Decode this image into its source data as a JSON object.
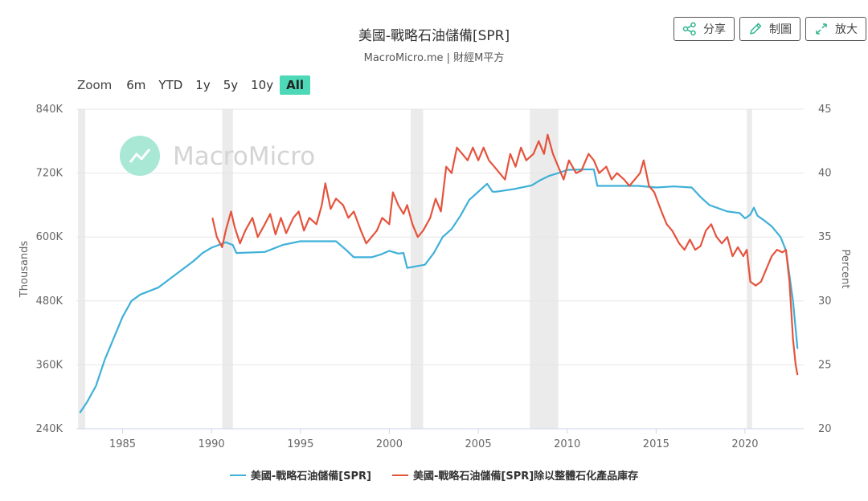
{
  "title": "美國-戰略石油儲備[SPR]",
  "subtitle": "MacroMicro.me | 財經M平方",
  "watermark": "MacroMicro",
  "toolbar": {
    "share": "分享",
    "draw": "制圖",
    "enlarge": "放大"
  },
  "zoom": {
    "label": "Zoom",
    "options": [
      "6m",
      "YTD",
      "1y",
      "5y",
      "10y",
      "All"
    ],
    "selected": "All"
  },
  "colors": {
    "spr": "#3fb0d8",
    "ratio": "#e5533d",
    "recession": "#ebebeb",
    "accent": "#4dd9b7"
  },
  "chart_data": {
    "type": "line",
    "title": "美國-戰略石油儲備[SPR]",
    "x_ticks": [
      "1985",
      "1990",
      "1995",
      "2000",
      "2005",
      "2010",
      "2015",
      "2020"
    ],
    "x_range": [
      1982.4,
      2023.3
    ],
    "y_left": {
      "label": "Thousands",
      "ticks": [
        "240K",
        "360K",
        "480K",
        "600K",
        "720K",
        "840K"
      ],
      "range": [
        240,
        840
      ]
    },
    "y_right": {
      "label": "Percent",
      "ticks": [
        "20",
        "25",
        "30",
        "35",
        "40",
        "45"
      ],
      "range": [
        20,
        45
      ]
    },
    "recessions": [
      [
        1982.5,
        1982.9
      ],
      [
        1990.6,
        1991.2
      ],
      [
        2001.2,
        2001.9
      ],
      [
        2007.9,
        2009.5
      ],
      [
        2020.1,
        2020.4
      ]
    ],
    "series": [
      {
        "name": "美國-戰略石油儲備[SPR]",
        "axis": "left",
        "points": [
          [
            1982.6,
            270
          ],
          [
            1983,
            290
          ],
          [
            1983.5,
            320
          ],
          [
            1984,
            370
          ],
          [
            1984.5,
            410
          ],
          [
            1985,
            450
          ],
          [
            1985.5,
            480
          ],
          [
            1986,
            492
          ],
          [
            1987,
            505
          ],
          [
            1988,
            530
          ],
          [
            1989,
            555
          ],
          [
            1989.5,
            570
          ],
          [
            1990,
            580
          ],
          [
            1990.8,
            590
          ],
          [
            1991.2,
            585
          ],
          [
            1991.4,
            570
          ],
          [
            1993,
            572
          ],
          [
            1994,
            585
          ],
          [
            1995,
            592
          ],
          [
            1996,
            592
          ],
          [
            1997,
            592
          ],
          [
            1997.6,
            575
          ],
          [
            1998,
            562
          ],
          [
            1999,
            562
          ],
          [
            1999.5,
            567
          ],
          [
            2000,
            574
          ],
          [
            2000.5,
            569
          ],
          [
            2000.8,
            570
          ],
          [
            2001,
            542
          ],
          [
            2001.5,
            545
          ],
          [
            2002,
            548
          ],
          [
            2002.5,
            570
          ],
          [
            2003,
            600
          ],
          [
            2003.5,
            615
          ],
          [
            2004,
            640
          ],
          [
            2004.5,
            670
          ],
          [
            2005,
            685
          ],
          [
            2005.5,
            700
          ],
          [
            2005.8,
            685
          ],
          [
            2006,
            685
          ],
          [
            2007,
            690
          ],
          [
            2008,
            697
          ],
          [
            2008.5,
            707
          ],
          [
            2009,
            715
          ],
          [
            2009.5,
            720
          ],
          [
            2010,
            726
          ],
          [
            2011,
            727
          ],
          [
            2011.5,
            727
          ],
          [
            2011.7,
            696
          ],
          [
            2013,
            696
          ],
          [
            2014,
            696
          ],
          [
            2015,
            693
          ],
          [
            2016,
            695
          ],
          [
            2017,
            693
          ],
          [
            2017.5,
            675
          ],
          [
            2018,
            660
          ],
          [
            2019,
            648
          ],
          [
            2019.7,
            645
          ],
          [
            2020,
            635
          ],
          [
            2020.3,
            642
          ],
          [
            2020.5,
            655
          ],
          [
            2020.7,
            640
          ],
          [
            2021,
            633
          ],
          [
            2021.5,
            620
          ],
          [
            2022,
            600
          ],
          [
            2022.3,
            575
          ],
          [
            2022.7,
            480
          ],
          [
            2022.95,
            390
          ]
        ]
      },
      {
        "name": "美國-戰略石油儲備[SPR]除以整體石化產品庫存",
        "axis": "right",
        "points": [
          [
            1990.05,
            36.5
          ],
          [
            1990.3,
            35
          ],
          [
            1990.6,
            34.2
          ],
          [
            1990.8,
            35.5
          ],
          [
            1991.1,
            37
          ],
          [
            1991.3,
            35.8
          ],
          [
            1991.6,
            34.5
          ],
          [
            1991.9,
            35.5
          ],
          [
            1992.3,
            36.5
          ],
          [
            1992.6,
            35
          ],
          [
            1993,
            36
          ],
          [
            1993.3,
            36.8
          ],
          [
            1993.6,
            35.2
          ],
          [
            1993.9,
            36.5
          ],
          [
            1994.2,
            35.3
          ],
          [
            1994.6,
            36.5
          ],
          [
            1994.9,
            37
          ],
          [
            1995.2,
            35.5
          ],
          [
            1995.5,
            36.5
          ],
          [
            1995.9,
            36
          ],
          [
            1996.2,
            37.5
          ],
          [
            1996.4,
            39.2
          ],
          [
            1996.7,
            37.2
          ],
          [
            1997,
            38
          ],
          [
            1997.4,
            37.5
          ],
          [
            1997.7,
            36.5
          ],
          [
            1998,
            37
          ],
          [
            1998.4,
            35.5
          ],
          [
            1998.7,
            34.5
          ],
          [
            1999,
            35
          ],
          [
            1999.3,
            35.5
          ],
          [
            1999.6,
            36.5
          ],
          [
            2000,
            36
          ],
          [
            2000.2,
            38.5
          ],
          [
            2000.5,
            37.5
          ],
          [
            2000.8,
            36.8
          ],
          [
            2001,
            37.5
          ],
          [
            2001.3,
            36
          ],
          [
            2001.6,
            35
          ],
          [
            2001.9,
            35.5
          ],
          [
            2002.3,
            36.5
          ],
          [
            2002.6,
            38
          ],
          [
            2002.9,
            37
          ],
          [
            2003.2,
            40.5
          ],
          [
            2003.5,
            40
          ],
          [
            2003.8,
            42
          ],
          [
            2004.1,
            41.5
          ],
          [
            2004.4,
            41
          ],
          [
            2004.7,
            42
          ],
          [
            2005,
            41
          ],
          [
            2005.3,
            42
          ],
          [
            2005.6,
            41
          ],
          [
            2005.9,
            40.5
          ],
          [
            2006.2,
            40
          ],
          [
            2006.5,
            39.5
          ],
          [
            2006.8,
            41.5
          ],
          [
            2007.1,
            40.5
          ],
          [
            2007.4,
            42
          ],
          [
            2007.7,
            41
          ],
          [
            2008.1,
            41.5
          ],
          [
            2008.4,
            42.5
          ],
          [
            2008.7,
            41.5
          ],
          [
            2008.9,
            43
          ],
          [
            2009.2,
            41.5
          ],
          [
            2009.5,
            40.5
          ],
          [
            2009.8,
            39.5
          ],
          [
            2010.1,
            41
          ],
          [
            2010.5,
            40
          ],
          [
            2010.8,
            40.2
          ],
          [
            2011.2,
            41.5
          ],
          [
            2011.5,
            41
          ],
          [
            2011.8,
            40
          ],
          [
            2012.2,
            40.5
          ],
          [
            2012.5,
            39.5
          ],
          [
            2012.8,
            40
          ],
          [
            2013.2,
            39.5
          ],
          [
            2013.5,
            39
          ],
          [
            2013.8,
            39.5
          ],
          [
            2014.1,
            40
          ],
          [
            2014.3,
            41
          ],
          [
            2014.6,
            39
          ],
          [
            2014.9,
            38.5
          ],
          [
            2015.3,
            37
          ],
          [
            2015.6,
            36
          ],
          [
            2015.9,
            35.5
          ],
          [
            2016.3,
            34.5
          ],
          [
            2016.6,
            34
          ],
          [
            2016.9,
            34.8
          ],
          [
            2017.2,
            34
          ],
          [
            2017.5,
            34.3
          ],
          [
            2017.8,
            35.5
          ],
          [
            2018.1,
            36
          ],
          [
            2018.4,
            35
          ],
          [
            2018.7,
            34.5
          ],
          [
            2019,
            35
          ],
          [
            2019.3,
            33.5
          ],
          [
            2019.6,
            34.2
          ],
          [
            2019.9,
            33.5
          ],
          [
            2020.1,
            34
          ],
          [
            2020.3,
            31.5
          ],
          [
            2020.6,
            31.2
          ],
          [
            2020.9,
            31.5
          ],
          [
            2021.2,
            32.5
          ],
          [
            2021.5,
            33.5
          ],
          [
            2021.8,
            34
          ],
          [
            2022.1,
            33.8
          ],
          [
            2022.3,
            34
          ],
          [
            2022.5,
            31.5
          ],
          [
            2022.7,
            27
          ],
          [
            2022.85,
            25
          ],
          [
            2022.95,
            24.2
          ]
        ]
      }
    ]
  }
}
